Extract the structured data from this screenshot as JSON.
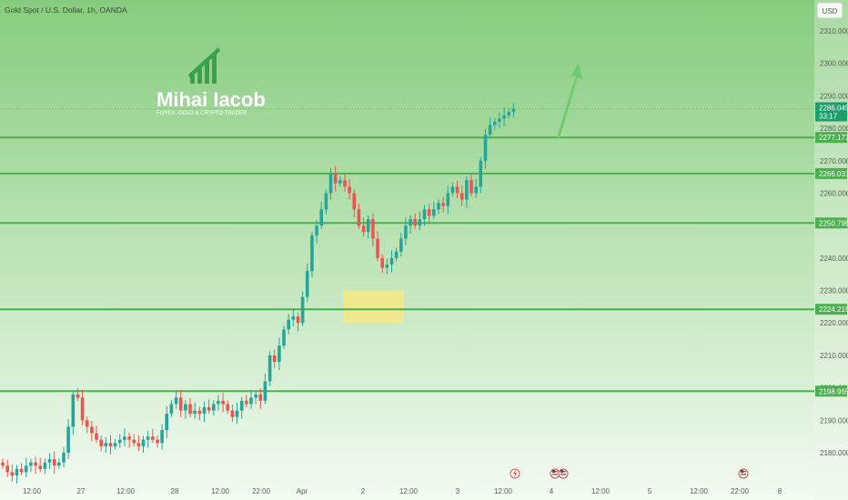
{
  "header": {
    "symbol_title": "Gold Spot / U.S. Dollar, 1h, OANDA",
    "currency_button": "USD"
  },
  "watermark": {
    "name": "Mihai Iacob",
    "tagline": "FOREX, GOLD & CRYPTO TRADER"
  },
  "colors": {
    "up": "#26a69a",
    "down": "#ef5350",
    "level_line": "#4caf50",
    "price_tag": "#1e9e6d",
    "zone": "#f4e88a",
    "arrow": "#6fcb6f",
    "background_top": "#86cc7e",
    "background_bottom": "#f4fbf3"
  },
  "chart_data": {
    "type": "candlestick",
    "title": "Gold Spot / U.S. Dollar, 1h, OANDA",
    "ylim": [
      2172,
      2316
    ],
    "y_ticks": [
      "2310.000",
      "2300.000",
      "2290.000",
      "2280.000",
      "2270.000",
      "2260.000",
      "2250.000",
      "2240.000",
      "2230.000",
      "2220.000",
      "2210.000",
      "2200.000",
      "2190.000",
      "2180.000"
    ],
    "x_ticks": [
      "12:00",
      "27",
      "12:00",
      "28",
      "12:00",
      "22:00",
      "Apr",
      "2",
      "12:00",
      "3",
      "12:00",
      "4",
      "12:00",
      "5",
      "12:00",
      "22:00",
      "8"
    ],
    "current_price": "2286.045",
    "countdown": "33:17",
    "levels": [
      {
        "label": "2277.177",
        "value": 2277.177
      },
      {
        "label": "2266.031",
        "value": 2266.031
      },
      {
        "label": "2250.795",
        "value": 2250.795
      },
      {
        "label": "2224.215",
        "value": 2224.215
      },
      {
        "label": "2198.965",
        "value": 2198.965
      }
    ],
    "demand_zone": {
      "from": 2220,
      "to": 2230
    },
    "closes": [
      2176,
      2174,
      2173,
      2175,
      2174,
      2176,
      2177,
      2176,
      2175,
      2177,
      2178,
      2176,
      2177,
      2180,
      2188,
      2198,
      2197,
      2190,
      2188,
      2186,
      2184,
      2182,
      2183,
      2182,
      2183,
      2184,
      2185,
      2184,
      2183,
      2182,
      2184,
      2185,
      2184,
      2183,
      2187,
      2192,
      2195,
      2197,
      2193,
      2195,
      2192,
      2193,
      2192,
      2194,
      2193,
      2195,
      2196,
      2195,
      2193,
      2191,
      2193,
      2196,
      2195,
      2197,
      2198,
      2196,
      2202,
      2210,
      2208,
      2213,
      2218,
      2221,
      2222,
      2220,
      2228,
      2236,
      2247,
      2250,
      2255,
      2260,
      2266,
      2263,
      2264,
      2262,
      2260,
      2255,
      2250,
      2248,
      2252,
      2246,
      2240,
      2237,
      2238,
      2240,
      2242,
      2246,
      2250,
      2252,
      2250,
      2252,
      2255,
      2253,
      2255,
      2257,
      2256,
      2260,
      2262,
      2260,
      2258,
      2264,
      2260,
      2262,
      2270,
      2278,
      2281,
      2282,
      2283,
      2284,
      2285,
      2286.045
    ],
    "arrow_target": 2300
  }
}
